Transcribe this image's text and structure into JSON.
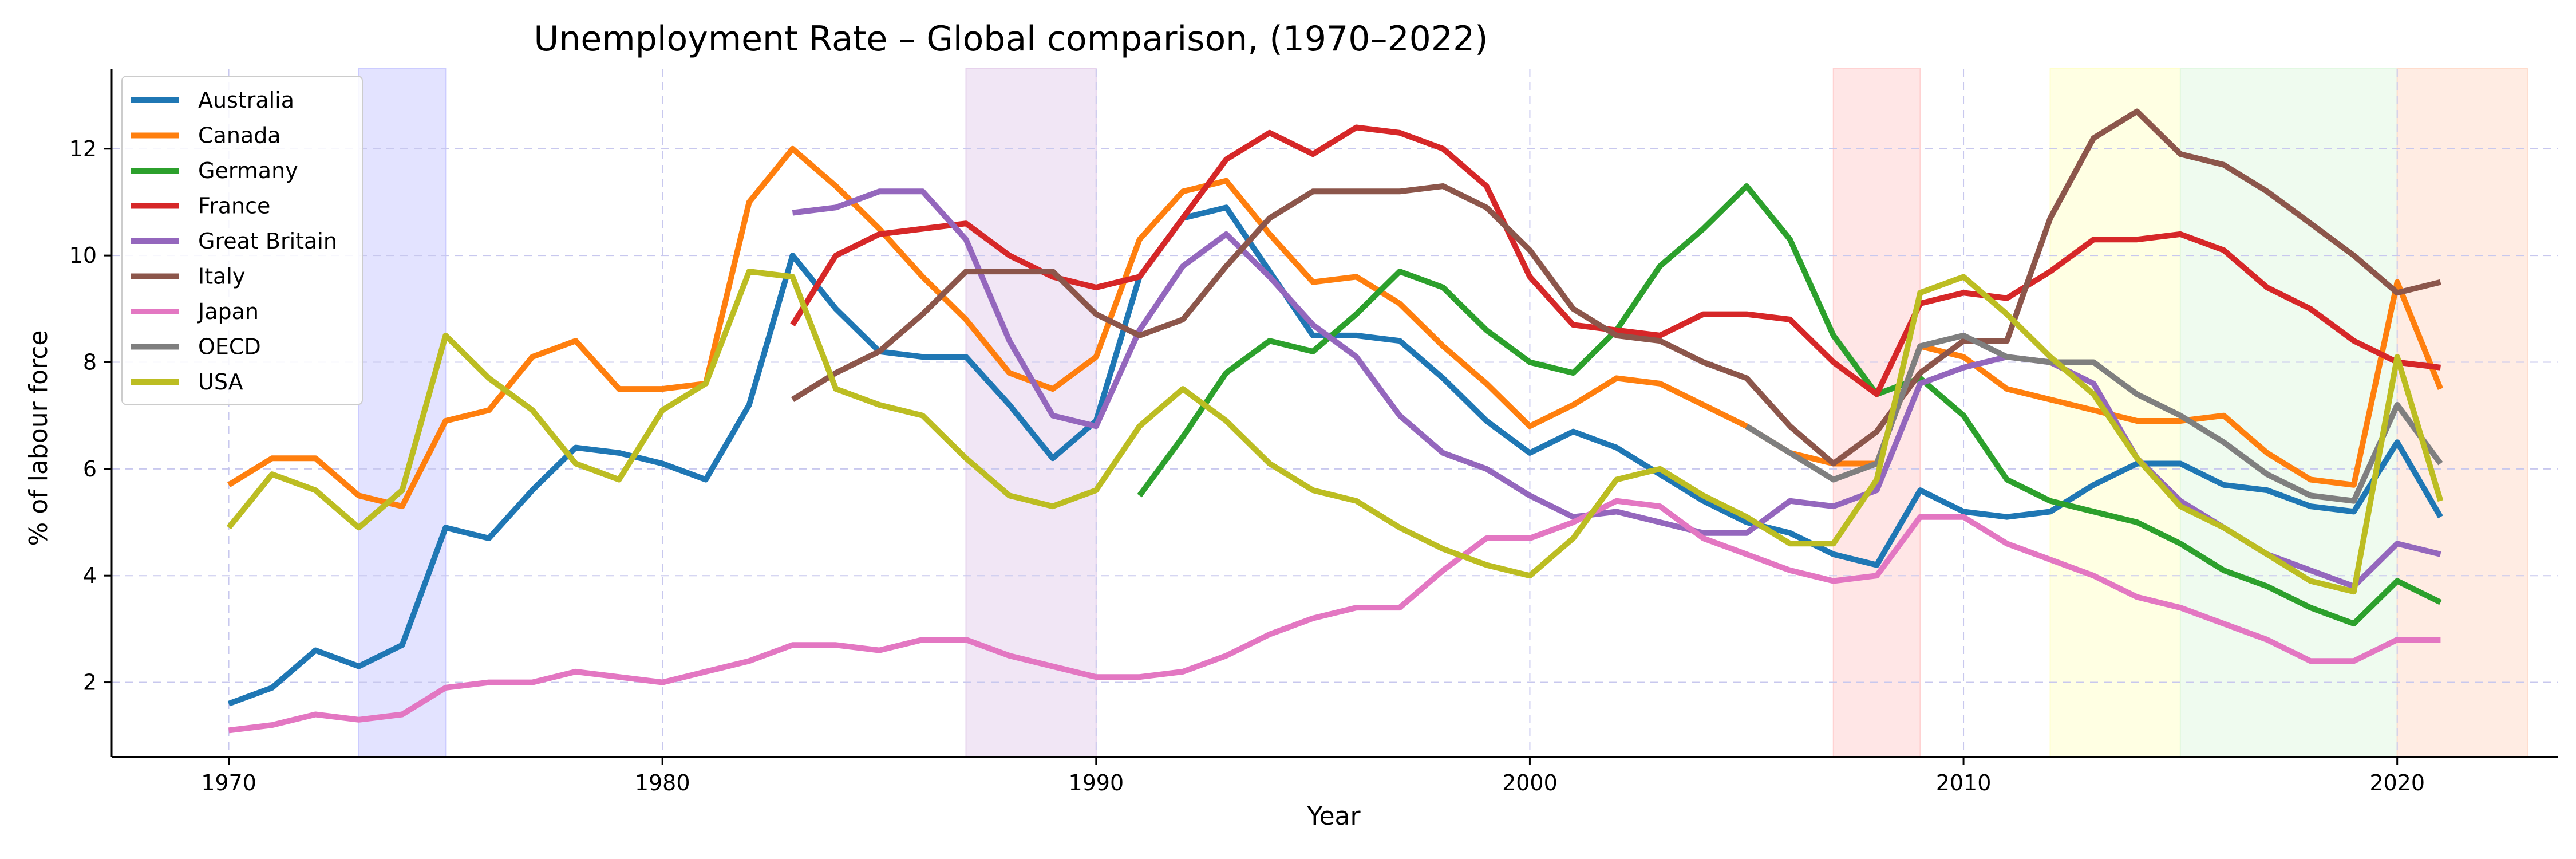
{
  "chart_data": {
    "type": "line",
    "title": "Unemployment Rate – Global comparison, (1970–2022)",
    "xlabel": "Year",
    "ylabel": "% of labour force",
    "xlim": [
      1967.3,
      2023.7
    ],
    "ylim": [
      0.6,
      13.5
    ],
    "x_ticks": [
      1970,
      1980,
      1990,
      2000,
      2010,
      2020
    ],
    "y_ticks": [
      2,
      4,
      6,
      8,
      10,
      12
    ],
    "grid": true,
    "legend_position": "top-left",
    "shaded_periods": [
      {
        "start": 1973,
        "end": 1975,
        "color": "#ccccff"
      },
      {
        "start": 1987,
        "end": 1990,
        "color": "#e6d2ec"
      },
      {
        "start": 2007,
        "end": 2009,
        "color": "#ffd2d2"
      },
      {
        "start": 2012,
        "end": 2015,
        "color": "#ffffcc"
      },
      {
        "start": 2015,
        "end": 2020,
        "color": "#e2f8e2"
      },
      {
        "start": 2020,
        "end": 2023,
        "color": "#ffdccc"
      }
    ],
    "series": [
      {
        "name": "Australia",
        "color": "#1f77b4",
        "start_year": 1970,
        "values": [
          1.6,
          1.9,
          2.6,
          2.3,
          2.7,
          4.9,
          4.7,
          5.6,
          6.4,
          6.3,
          6.1,
          5.8,
          7.2,
          10.0,
          9.0,
          8.2,
          8.1,
          8.1,
          7.2,
          6.2,
          6.9,
          9.6,
          10.7,
          10.9,
          9.7,
          8.5,
          8.5,
          8.4,
          7.7,
          6.9,
          6.3,
          6.7,
          6.4,
          5.9,
          5.4,
          5.0,
          4.8,
          4.4,
          4.2,
          5.6,
          5.2,
          5.1,
          5.2,
          5.7,
          6.1,
          6.1,
          5.7,
          5.6,
          5.3,
          5.2,
          6.5,
          5.1
        ]
      },
      {
        "name": "Canada",
        "color": "#ff7f0e",
        "start_year": 1970,
        "values": [
          5.7,
          6.2,
          6.2,
          5.5,
          5.3,
          6.9,
          7.1,
          8.1,
          8.4,
          7.5,
          7.5,
          7.6,
          11.0,
          12.0,
          11.3,
          10.5,
          9.6,
          8.8,
          7.8,
          7.5,
          8.1,
          10.3,
          11.2,
          11.4,
          10.4,
          9.5,
          9.6,
          9.1,
          8.3,
          7.6,
          6.8,
          7.2,
          7.7,
          7.6,
          7.2,
          6.8,
          6.3,
          6.1,
          6.1,
          8.3,
          8.1,
          7.5,
          7.3,
          7.1,
          6.9,
          6.9,
          7.0,
          6.3,
          5.8,
          5.7,
          9.5,
          7.5
        ]
      },
      {
        "name": "Germany",
        "color": "#2ca02c",
        "start_year": 1991,
        "values": [
          5.5,
          6.6,
          7.8,
          8.4,
          8.2,
          8.9,
          9.7,
          9.4,
          8.6,
          8.0,
          7.8,
          8.6,
          9.8,
          10.5,
          11.3,
          10.3,
          8.5,
          7.4,
          7.7,
          7.0,
          5.8,
          5.4,
          5.2,
          5.0,
          4.6,
          4.1,
          3.8,
          3.4,
          3.1,
          3.9,
          3.5
        ]
      },
      {
        "name": "France",
        "color": "#d62728",
        "start_year": 1983,
        "values": [
          8.7,
          10.0,
          10.4,
          10.5,
          10.6,
          10.0,
          9.6,
          9.4,
          9.6,
          10.7,
          11.8,
          12.3,
          11.9,
          12.4,
          12.3,
          12.0,
          11.3,
          9.6,
          8.7,
          8.6,
          8.5,
          8.9,
          8.9,
          8.8,
          8.0,
          7.4,
          9.1,
          9.3,
          9.2,
          9.7,
          10.3,
          10.3,
          10.4,
          10.1,
          9.4,
          9.0,
          8.4,
          8.0,
          7.9
        ]
      },
      {
        "name": "Great Britain",
        "color": "#9467bd",
        "start_year": 1983,
        "values": [
          10.8,
          10.9,
          11.2,
          11.2,
          10.3,
          8.4,
          7.0,
          6.8,
          8.6,
          9.8,
          10.4,
          9.6,
          8.7,
          8.1,
          7.0,
          6.3,
          6.0,
          5.5,
          5.1,
          5.2,
          5.0,
          4.8,
          4.8,
          5.4,
          5.3,
          5.6,
          7.6,
          7.9,
          8.1,
          8.0,
          7.6,
          6.2,
          5.4,
          4.9,
          4.4,
          4.1,
          3.8,
          4.6,
          4.4
        ]
      },
      {
        "name": "Italy",
        "color": "#8c564b",
        "start_year": 1983,
        "values": [
          7.3,
          7.8,
          8.2,
          8.9,
          9.7,
          9.7,
          9.7,
          8.9,
          8.5,
          8.8,
          9.8,
          10.7,
          11.2,
          11.2,
          11.2,
          11.3,
          10.9,
          10.1,
          9.0,
          8.5,
          8.4,
          8.0,
          7.7,
          6.8,
          6.1,
          6.7,
          7.8,
          8.4,
          8.4,
          10.7,
          12.2,
          12.7,
          11.9,
          11.7,
          11.2,
          10.6,
          10.0,
          9.3,
          9.5
        ]
      },
      {
        "name": "Japan",
        "color": "#e377c2",
        "start_year": 1970,
        "values": [
          1.1,
          1.2,
          1.4,
          1.3,
          1.4,
          1.9,
          2.0,
          2.0,
          2.2,
          2.1,
          2.0,
          2.2,
          2.4,
          2.7,
          2.7,
          2.6,
          2.8,
          2.8,
          2.5,
          2.3,
          2.1,
          2.1,
          2.2,
          2.5,
          2.9,
          3.2,
          3.4,
          3.4,
          4.1,
          4.7,
          4.7,
          5.0,
          5.4,
          5.3,
          4.7,
          4.4,
          4.1,
          3.9,
          4.0,
          5.1,
          5.1,
          4.6,
          4.3,
          4.0,
          3.6,
          3.4,
          3.1,
          2.8,
          2.4,
          2.4,
          2.8,
          2.8
        ]
      },
      {
        "name": "OECD",
        "color": "#7f7f7f",
        "start_year": 2005,
        "values": [
          6.8,
          6.3,
          5.8,
          6.1,
          8.3,
          8.5,
          8.1,
          8.0,
          8.0,
          7.4,
          7.0,
          6.5,
          5.9,
          5.5,
          5.4,
          7.2,
          6.1
        ]
      },
      {
        "name": "USA",
        "color": "#bcbd22",
        "start_year": 1970,
        "values": [
          4.9,
          5.9,
          5.6,
          4.9,
          5.6,
          8.5,
          7.7,
          7.1,
          6.1,
          5.8,
          7.1,
          7.6,
          9.7,
          9.6,
          7.5,
          7.2,
          7.0,
          6.2,
          5.5,
          5.3,
          5.6,
          6.8,
          7.5,
          6.9,
          6.1,
          5.6,
          5.4,
          4.9,
          4.5,
          4.2,
          4.0,
          4.7,
          5.8,
          6.0,
          5.5,
          5.1,
          4.6,
          4.6,
          5.8,
          9.3,
          9.6,
          8.9,
          8.1,
          7.4,
          6.2,
          5.3,
          4.9,
          4.4,
          3.9,
          3.7,
          8.1,
          5.4
        ]
      }
    ]
  }
}
